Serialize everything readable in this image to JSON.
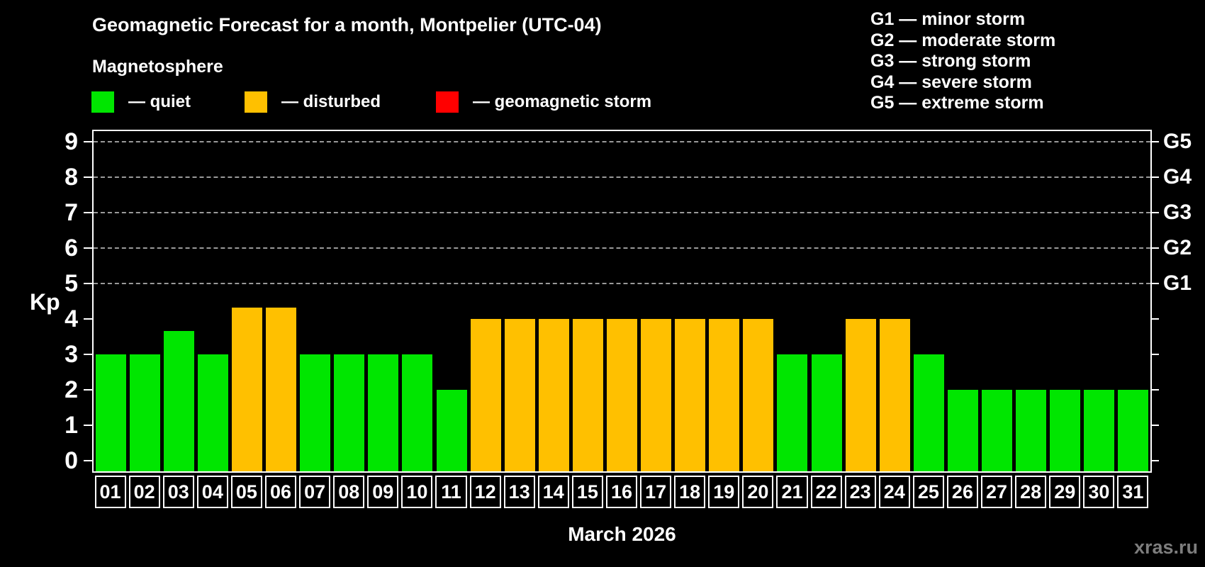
{
  "header": {
    "title": "Geomagnetic Forecast for a month, Montpelier (UTC-04)",
    "subtitle": "Magnetosphere",
    "legend": [
      {
        "name": "quiet",
        "label": "— quiet",
        "color": "#00e600"
      },
      {
        "name": "disturbed",
        "label": "— disturbed",
        "color": "#ffc000"
      },
      {
        "name": "geomagnetic-storm",
        "label": "— geomagnetic storm",
        "color": "#ff0000"
      }
    ],
    "g_scale": [
      "G1 — minor storm",
      "G2 — moderate storm",
      "G3 — strong storm",
      "G4 — severe storm",
      "G5 — extreme storm"
    ]
  },
  "chart_data": {
    "type": "bar",
    "title": "Geomagnetic Forecast for a month, Montpelier (UTC-04)",
    "ylabel": "Kp",
    "xlabel": "March 2026",
    "categories": [
      "01",
      "02",
      "03",
      "04",
      "05",
      "06",
      "07",
      "08",
      "09",
      "10",
      "11",
      "12",
      "13",
      "14",
      "15",
      "16",
      "17",
      "18",
      "19",
      "20",
      "21",
      "22",
      "23",
      "24",
      "25",
      "26",
      "27",
      "28",
      "29",
      "30",
      "31"
    ],
    "values": [
      3,
      3,
      3.67,
      3,
      4.33,
      4.33,
      3,
      3,
      3,
      3,
      2,
      4,
      4,
      4,
      4,
      4,
      4,
      4,
      4,
      4,
      3,
      3,
      4,
      4,
      3,
      2,
      2,
      2,
      2,
      2,
      2
    ],
    "statuses": [
      "quiet",
      "quiet",
      "quiet",
      "quiet",
      "disturbed",
      "disturbed",
      "quiet",
      "quiet",
      "quiet",
      "quiet",
      "quiet",
      "disturbed",
      "disturbed",
      "disturbed",
      "disturbed",
      "disturbed",
      "disturbed",
      "disturbed",
      "disturbed",
      "disturbed",
      "quiet",
      "quiet",
      "disturbed",
      "disturbed",
      "quiet",
      "quiet",
      "quiet",
      "quiet",
      "quiet",
      "quiet",
      "quiet"
    ],
    "ylim": [
      0,
      9
    ],
    "yticks": [
      0,
      1,
      2,
      3,
      4,
      5,
      6,
      7,
      8,
      9
    ],
    "grid": "horizontal dashed lines at Kp 5,6,7,8,9 only",
    "legend_position": "top-left above plot",
    "right_axis_labels": [
      {
        "kp": 5,
        "label": "G1"
      },
      {
        "kp": 6,
        "label": "G2"
      },
      {
        "kp": 7,
        "label": "G3"
      },
      {
        "kp": 8,
        "label": "G4"
      },
      {
        "kp": 9,
        "label": "G5"
      }
    ],
    "colors": {
      "quiet": "#00e600",
      "disturbed": "#ffc000",
      "storm": "#ff0000",
      "background": "#000000",
      "text": "#ffffff",
      "grid": "#9a9a9a"
    },
    "color_rule": "kp < 4 quiet (green), 4 <= kp < 5 disturbed (orange), kp >= 5 geomagnetic storm (red)"
  },
  "footer": {
    "caption": "March 2026",
    "watermark": "xras.ru"
  }
}
